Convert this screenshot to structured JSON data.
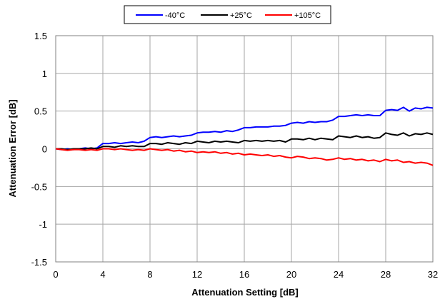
{
  "chart_data": {
    "type": "line",
    "xlabel": "Attenuation Setting [dB]",
    "ylabel": "Attenuation Error [dB]",
    "xlim": [
      0,
      32
    ],
    "ylim": [
      -1.5,
      1.5
    ],
    "xticks": [
      0,
      4,
      8,
      12,
      16,
      20,
      24,
      28,
      32
    ],
    "yticks": [
      1.5,
      1,
      0.5,
      0,
      -0.5,
      -1,
      -1.5
    ],
    "grid": true,
    "legend_position": "top-center",
    "series": [
      {
        "name": "-40°C",
        "color": "#0000ff",
        "points": [
          [
            0,
            0.0
          ],
          [
            0.5,
            -0.01
          ],
          [
            1,
            0.0
          ],
          [
            1.5,
            -0.01
          ],
          [
            2,
            0.0
          ],
          [
            2.5,
            0.01
          ],
          [
            3,
            0.0
          ],
          [
            3.5,
            0.01
          ],
          [
            4,
            0.07
          ],
          [
            4.5,
            0.07
          ],
          [
            5,
            0.08
          ],
          [
            5.5,
            0.07
          ],
          [
            6,
            0.08
          ],
          [
            6.5,
            0.09
          ],
          [
            7,
            0.08
          ],
          [
            7.5,
            0.1
          ],
          [
            8,
            0.15
          ],
          [
            8.5,
            0.16
          ],
          [
            9,
            0.15
          ],
          [
            9.5,
            0.16
          ],
          [
            10,
            0.17
          ],
          [
            10.5,
            0.16
          ],
          [
            11,
            0.17
          ],
          [
            11.5,
            0.18
          ],
          [
            12,
            0.21
          ],
          [
            12.5,
            0.22
          ],
          [
            13,
            0.22
          ],
          [
            13.5,
            0.23
          ],
          [
            14,
            0.22
          ],
          [
            14.5,
            0.24
          ],
          [
            15,
            0.23
          ],
          [
            15.5,
            0.25
          ],
          [
            16,
            0.28
          ],
          [
            16.5,
            0.28
          ],
          [
            17,
            0.29
          ],
          [
            17.5,
            0.29
          ],
          [
            18,
            0.29
          ],
          [
            18.5,
            0.3
          ],
          [
            19,
            0.3
          ],
          [
            19.5,
            0.31
          ],
          [
            20,
            0.34
          ],
          [
            20.5,
            0.35
          ],
          [
            21,
            0.34
          ],
          [
            21.5,
            0.36
          ],
          [
            22,
            0.35
          ],
          [
            22.5,
            0.36
          ],
          [
            23,
            0.36
          ],
          [
            23.5,
            0.38
          ],
          [
            24,
            0.43
          ],
          [
            24.5,
            0.43
          ],
          [
            25,
            0.44
          ],
          [
            25.5,
            0.45
          ],
          [
            26,
            0.44
          ],
          [
            26.5,
            0.45
          ],
          [
            27,
            0.44
          ],
          [
            27.5,
            0.44
          ],
          [
            28,
            0.51
          ],
          [
            28.5,
            0.52
          ],
          [
            29,
            0.51
          ],
          [
            29.5,
            0.55
          ],
          [
            30,
            0.5
          ],
          [
            30.5,
            0.54
          ],
          [
            31,
            0.53
          ],
          [
            31.5,
            0.55
          ],
          [
            32,
            0.54
          ]
        ]
      },
      {
        "name": "+25°C",
        "color": "#000000",
        "points": [
          [
            0,
            0.0
          ],
          [
            0.5,
            0.0
          ],
          [
            1,
            -0.01
          ],
          [
            1.5,
            0.0
          ],
          [
            2,
            0.0
          ],
          [
            2.5,
            0.0
          ],
          [
            3,
            0.01
          ],
          [
            3.5,
            0.0
          ],
          [
            4,
            0.03
          ],
          [
            4.5,
            0.03
          ],
          [
            5,
            0.02
          ],
          [
            5.5,
            0.04
          ],
          [
            6,
            0.03
          ],
          [
            6.5,
            0.04
          ],
          [
            7,
            0.03
          ],
          [
            7.5,
            0.03
          ],
          [
            8,
            0.07
          ],
          [
            8.5,
            0.07
          ],
          [
            9,
            0.06
          ],
          [
            9.5,
            0.08
          ],
          [
            10,
            0.07
          ],
          [
            10.5,
            0.06
          ],
          [
            11,
            0.08
          ],
          [
            11.5,
            0.07
          ],
          [
            12,
            0.1
          ],
          [
            12.5,
            0.09
          ],
          [
            13,
            0.08
          ],
          [
            13.5,
            0.1
          ],
          [
            14,
            0.09
          ],
          [
            14.5,
            0.1
          ],
          [
            15,
            0.09
          ],
          [
            15.5,
            0.08
          ],
          [
            16,
            0.11
          ],
          [
            16.5,
            0.1
          ],
          [
            17,
            0.11
          ],
          [
            17.5,
            0.1
          ],
          [
            18,
            0.11
          ],
          [
            18.5,
            0.1
          ],
          [
            19,
            0.11
          ],
          [
            19.5,
            0.09
          ],
          [
            20,
            0.13
          ],
          [
            20.5,
            0.13
          ],
          [
            21,
            0.12
          ],
          [
            21.5,
            0.14
          ],
          [
            22,
            0.12
          ],
          [
            22.5,
            0.14
          ],
          [
            23,
            0.13
          ],
          [
            23.5,
            0.12
          ],
          [
            24,
            0.17
          ],
          [
            24.5,
            0.16
          ],
          [
            25,
            0.15
          ],
          [
            25.5,
            0.17
          ],
          [
            26,
            0.15
          ],
          [
            26.5,
            0.16
          ],
          [
            27,
            0.14
          ],
          [
            27.5,
            0.15
          ],
          [
            28,
            0.21
          ],
          [
            28.5,
            0.19
          ],
          [
            29,
            0.18
          ],
          [
            29.5,
            0.21
          ],
          [
            30,
            0.17
          ],
          [
            30.5,
            0.2
          ],
          [
            31,
            0.19
          ],
          [
            31.5,
            0.21
          ],
          [
            32,
            0.19
          ]
        ]
      },
      {
        "name": "+105°C",
        "color": "#ff0000",
        "points": [
          [
            0,
            0.0
          ],
          [
            0.5,
            -0.01
          ],
          [
            1,
            -0.02
          ],
          [
            1.5,
            -0.01
          ],
          [
            2,
            -0.01
          ],
          [
            2.5,
            -0.02
          ],
          [
            3,
            -0.01
          ],
          [
            3.5,
            -0.02
          ],
          [
            4,
            0.0
          ],
          [
            4.5,
            0.0
          ],
          [
            5,
            -0.01
          ],
          [
            5.5,
            0.0
          ],
          [
            6,
            -0.01
          ],
          [
            6.5,
            -0.02
          ],
          [
            7,
            -0.01
          ],
          [
            7.5,
            -0.02
          ],
          [
            8,
            0.0
          ],
          [
            8.5,
            -0.01
          ],
          [
            9,
            -0.02
          ],
          [
            9.5,
            -0.01
          ],
          [
            10,
            -0.03
          ],
          [
            10.5,
            -0.02
          ],
          [
            11,
            -0.04
          ],
          [
            11.5,
            -0.03
          ],
          [
            12,
            -0.05
          ],
          [
            12.5,
            -0.04
          ],
          [
            13,
            -0.05
          ],
          [
            13.5,
            -0.04
          ],
          [
            14,
            -0.06
          ],
          [
            14.5,
            -0.05
          ],
          [
            15,
            -0.07
          ],
          [
            15.5,
            -0.06
          ],
          [
            16,
            -0.08
          ],
          [
            16.5,
            -0.07
          ],
          [
            17,
            -0.08
          ],
          [
            17.5,
            -0.09
          ],
          [
            18,
            -0.08
          ],
          [
            18.5,
            -0.1
          ],
          [
            19,
            -0.09
          ],
          [
            19.5,
            -0.11
          ],
          [
            20,
            -0.12
          ],
          [
            20.5,
            -0.1
          ],
          [
            21,
            -0.11
          ],
          [
            21.5,
            -0.13
          ],
          [
            22,
            -0.12
          ],
          [
            22.5,
            -0.13
          ],
          [
            23,
            -0.15
          ],
          [
            23.5,
            -0.14
          ],
          [
            24,
            -0.12
          ],
          [
            24.5,
            -0.14
          ],
          [
            25,
            -0.13
          ],
          [
            25.5,
            -0.15
          ],
          [
            26,
            -0.14
          ],
          [
            26.5,
            -0.16
          ],
          [
            27,
            -0.15
          ],
          [
            27.5,
            -0.17
          ],
          [
            28,
            -0.14
          ],
          [
            28.5,
            -0.16
          ],
          [
            29,
            -0.15
          ],
          [
            29.5,
            -0.18
          ],
          [
            30,
            -0.17
          ],
          [
            30.5,
            -0.19
          ],
          [
            31,
            -0.18
          ],
          [
            31.5,
            -0.19
          ],
          [
            32,
            -0.22
          ]
        ]
      }
    ]
  }
}
